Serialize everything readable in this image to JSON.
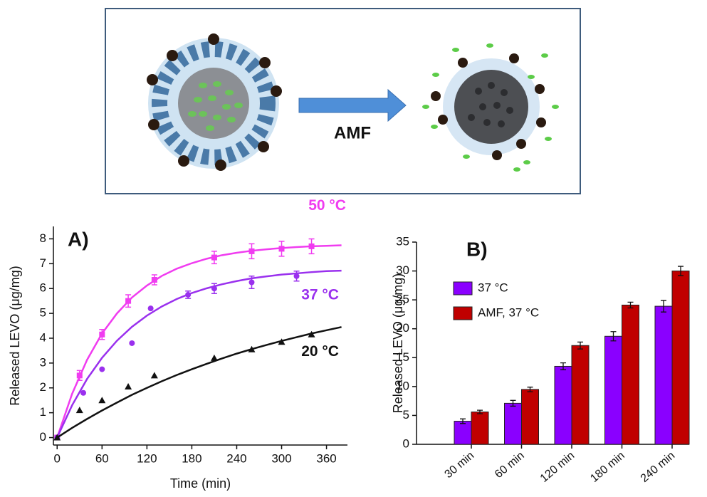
{
  "diagram": {
    "arrow_label": "AMF"
  },
  "chart_data": [
    {
      "type": "scatter",
      "panel_label": "A)",
      "x_label": "Time (min)",
      "y_label": "Released LEVO (μg/mg)",
      "xlim": [
        -5,
        388
      ],
      "ylim": [
        -0.3,
        8.5
      ],
      "xticks": [
        0,
        60,
        120,
        180,
        240,
        300,
        360
      ],
      "yticks": [
        0,
        1,
        2,
        3,
        4,
        5,
        6,
        7,
        8
      ],
      "fit_x": [
        0,
        20,
        40,
        60,
        80,
        100,
        120,
        140,
        160,
        180,
        200,
        220,
        240,
        260,
        280,
        300,
        320,
        340,
        360,
        380
      ],
      "series": [
        {
          "name": "50 °C",
          "color": "#f03cf0",
          "marker": "square",
          "x": [
            0,
            30,
            60,
            95,
            130,
            210,
            260,
            300,
            340
          ],
          "values": [
            0,
            2.5,
            4.15,
            5.5,
            6.35,
            7.25,
            7.5,
            7.6,
            7.7
          ],
          "errors": [
            0,
            0.2,
            0.2,
            0.25,
            0.2,
            0.25,
            0.3,
            0.3,
            0.3
          ],
          "fit_values": [
            0,
            1.76,
            3.13,
            4.19,
            5.0,
            5.64,
            6.12,
            6.51,
            6.8,
            7.02,
            7.2,
            7.34,
            7.44,
            7.52,
            7.58,
            7.63,
            7.67,
            7.7,
            7.72,
            7.74
          ]
        },
        {
          "name": "37 °C",
          "color": "#9a30ee",
          "marker": "circle",
          "x": [
            0,
            35,
            60,
            100,
            125,
            175,
            210,
            260,
            320
          ],
          "values": [
            0,
            1.8,
            2.75,
            3.8,
            5.2,
            5.75,
            6.0,
            6.25,
            6.5
          ],
          "errors": [
            0,
            0,
            0,
            0,
            0,
            0.15,
            0.2,
            0.25,
            0.2
          ],
          "fit_values": [
            0,
            1.3,
            2.36,
            3.21,
            3.9,
            4.46,
            4.91,
            5.28,
            5.58,
            5.82,
            6.01,
            6.17,
            6.3,
            6.41,
            6.49,
            6.56,
            6.61,
            6.66,
            6.7,
            6.72
          ]
        },
        {
          "name": "20 °C",
          "color": "#111111",
          "marker": "triangle",
          "x": [
            0,
            30,
            60,
            95,
            130,
            210,
            260,
            300,
            340
          ],
          "values": [
            0,
            1.1,
            1.5,
            2.05,
            2.5,
            3.2,
            3.55,
            3.85,
            4.15
          ],
          "errors": [
            0,
            0,
            0,
            0,
            0,
            0,
            0,
            0,
            0
          ],
          "fit_values": [
            0,
            0.39,
            0.75,
            1.09,
            1.41,
            1.72,
            2.0,
            2.27,
            2.52,
            2.75,
            2.97,
            3.18,
            3.38,
            3.56,
            3.73,
            3.89,
            4.04,
            4.19,
            4.32,
            4.45
          ]
        }
      ]
    },
    {
      "type": "bar",
      "panel_label": "B)",
      "y_label": "Released LEVO (μg/mg)",
      "legend": "upper left",
      "ylim": [
        0,
        35
      ],
      "yticks": [
        0,
        5,
        10,
        15,
        20,
        25,
        30,
        35
      ],
      "categories": [
        "30 min",
        "60 min",
        "120 min",
        "180 min",
        "240 min"
      ],
      "series": [
        {
          "name": "37 °C",
          "color": "#8a00ff",
          "values": [
            4.0,
            7.1,
            13.5,
            18.7,
            23.9
          ],
          "errors": [
            0.4,
            0.5,
            0.6,
            0.8,
            1.0
          ]
        },
        {
          "name": "AMF, 37 °C",
          "color": "#c00000",
          "values": [
            5.6,
            9.5,
            17.1,
            24.1,
            30.0
          ],
          "errors": [
            0.3,
            0.4,
            0.6,
            0.5,
            0.8
          ]
        }
      ]
    }
  ]
}
